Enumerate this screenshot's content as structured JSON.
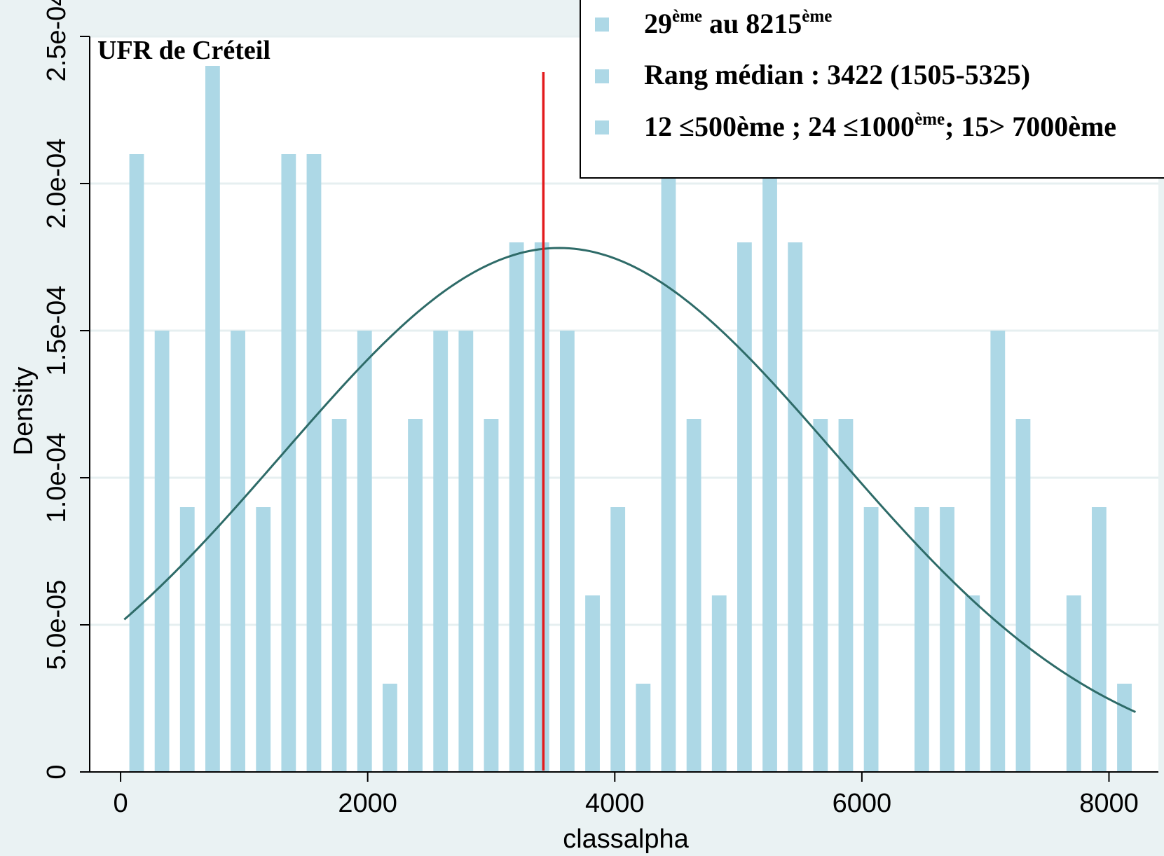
{
  "chart_data": {
    "type": "bar",
    "panel_title": "UFR de Créteil",
    "xlabel": "classalpha",
    "ylabel": "Density",
    "xlim": [
      -250,
      8400
    ],
    "ylim": [
      0,
      0.00025
    ],
    "x_ticks": [
      {
        "value": 0,
        "label": "0"
      },
      {
        "value": 2000,
        "label": "2000"
      },
      {
        "value": 4000,
        "label": "4000"
      },
      {
        "value": 6000,
        "label": "6000"
      },
      {
        "value": 8000,
        "label": "8000"
      }
    ],
    "y_ticks": [
      {
        "value": 0,
        "label": "0"
      },
      {
        "value": 5e-05,
        "label": "5.0e-05"
      },
      {
        "value": 0.0001,
        "label": "1.0e-04"
      },
      {
        "value": 0.00015,
        "label": "1.5e-04"
      },
      {
        "value": 0.0002,
        "label": "2.0e-04"
      },
      {
        "value": 0.00025,
        "label": "2.5e-04"
      }
    ],
    "grid": true,
    "bin_width": 205,
    "bins": [
      {
        "x": 130,
        "y": 0.00021
      },
      {
        "x": 335,
        "y": 0.00015
      },
      {
        "x": 540,
        "y": 9e-05
      },
      {
        "x": 745,
        "y": 0.00024
      },
      {
        "x": 950,
        "y": 0.00015
      },
      {
        "x": 1155,
        "y": 9e-05
      },
      {
        "x": 1360,
        "y": 0.00021
      },
      {
        "x": 1565,
        "y": 0.00021
      },
      {
        "x": 1770,
        "y": 0.00012
      },
      {
        "x": 1975,
        "y": 0.00015
      },
      {
        "x": 2180,
        "y": 3e-05
      },
      {
        "x": 2385,
        "y": 0.00012
      },
      {
        "x": 2590,
        "y": 0.00015
      },
      {
        "x": 2795,
        "y": 0.00015
      },
      {
        "x": 3000,
        "y": 0.00012
      },
      {
        "x": 3205,
        "y": 0.00018
      },
      {
        "x": 3410,
        "y": 0.00018
      },
      {
        "x": 3615,
        "y": 0.00015
      },
      {
        "x": 3820,
        "y": 6e-05
      },
      {
        "x": 4025,
        "y": 9e-05
      },
      {
        "x": 4230,
        "y": 3e-05
      },
      {
        "x": 4435,
        "y": 0.00021
      },
      {
        "x": 4640,
        "y": 0.00012
      },
      {
        "x": 4845,
        "y": 6e-05
      },
      {
        "x": 5050,
        "y": 0.00018
      },
      {
        "x": 5255,
        "y": 0.00024
      },
      {
        "x": 5460,
        "y": 0.00018
      },
      {
        "x": 5665,
        "y": 0.00012
      },
      {
        "x": 5870,
        "y": 0.00012
      },
      {
        "x": 6075,
        "y": 9e-05
      },
      {
        "x": 6485,
        "y": 9e-05
      },
      {
        "x": 6690,
        "y": 9e-05
      },
      {
        "x": 6895,
        "y": 6e-05
      },
      {
        "x": 7100,
        "y": 0.00015
      },
      {
        "x": 7305,
        "y": 0.00012
      },
      {
        "x": 7715,
        "y": 6e-05
      },
      {
        "x": 7920,
        "y": 9e-05
      },
      {
        "x": 8125,
        "y": 3e-05
      }
    ],
    "normal_curve": {
      "mean": 3550,
      "sd": 2240,
      "x_range": [
        30,
        8215
      ]
    },
    "median_line": {
      "x": 3422
    },
    "colors": {
      "bars": "#add8e6",
      "curve": "#2e6b68",
      "median_line": "#e31a1c",
      "grid": "#e6eff0",
      "plot_bg": "#ffffff",
      "page_bg": "#eaf2f3"
    },
    "annotations": {
      "items": [
        {
          "base1": "29",
          "sup1": "ème",
          "middle": " au  8215",
          "sup2": "ème",
          "tail": ""
        },
        {
          "base1": "Rang médian : 3422 (1505-5325)",
          "sup1": "",
          "middle": "",
          "sup2": "",
          "tail": ""
        },
        {
          "base1": "12 ≤500ème ; 24 ≤1000",
          "sup1": "ème",
          "middle": "; 15> 7000ème",
          "sup2": "",
          "tail": ""
        }
      ]
    }
  }
}
